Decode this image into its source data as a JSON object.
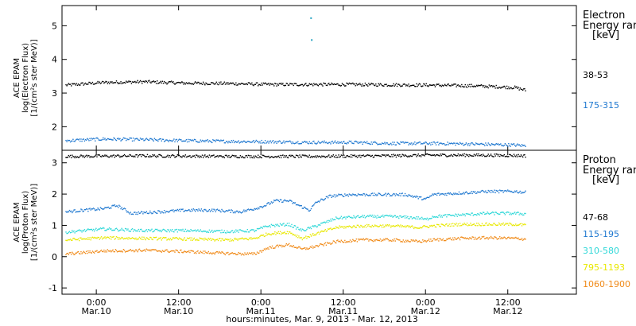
{
  "x_axis_title": "hours:minutes, Mar. 9, 2013 - Mar. 12, 2013",
  "x_ticks": [
    {
      "time": "0:00",
      "date": "Mar.10",
      "hours": 19
    },
    {
      "time": "12:00",
      "date": "Mar.10",
      "hours": 31
    },
    {
      "time": "0:00",
      "date": "Mar.11",
      "hours": 43
    },
    {
      "time": "12:00",
      "date": "Mar.11",
      "hours": 55
    },
    {
      "time": "0:00",
      "date": "Mar.12",
      "hours": 67
    },
    {
      "time": "12:00",
      "date": "Mar.12",
      "hours": 79
    }
  ],
  "chart_data": [
    {
      "type": "scatter",
      "panel": "electron",
      "ylabel_lines": [
        "ACE EPAM",
        "log(Electron Flux)",
        "[1/(cm²s ster MeV)]"
      ],
      "legend_title_lines": [
        "Electron",
        "Energy ran",
        "[keV]"
      ],
      "xlim": [
        14,
        89
      ],
      "ylim": [
        1.3,
        5.6
      ],
      "yticks": [
        2,
        3,
        4,
        5
      ],
      "series": [
        {
          "name": "38-53",
          "color": "#000000",
          "points": [
            [
              14.5,
              3.25
            ],
            [
              20,
              3.33
            ],
            [
              26,
              3.35
            ],
            [
              32,
              3.31
            ],
            [
              38,
              3.3
            ],
            [
              44,
              3.27
            ],
            [
              50,
              3.27
            ],
            [
              56,
              3.27
            ],
            [
              62,
              3.26
            ],
            [
              68,
              3.25
            ],
            [
              74,
              3.23
            ],
            [
              80,
              3.18
            ],
            [
              81.5,
              3.1
            ]
          ]
        },
        {
          "name": "175-315",
          "color": "#1f78d0",
          "points": [
            [
              14.5,
              1.6
            ],
            [
              20,
              1.65
            ],
            [
              26,
              1.63
            ],
            [
              32,
              1.6
            ],
            [
              38,
              1.58
            ],
            [
              44,
              1.57
            ],
            [
              50,
              1.55
            ],
            [
              56,
              1.55
            ],
            [
              62,
              1.52
            ],
            [
              68,
              1.52
            ],
            [
              74,
              1.5
            ],
            [
              80,
              1.47
            ],
            [
              81.5,
              1.45
            ]
          ]
        }
      ],
      "spikes": [
        {
          "x": 50.2,
          "y": 5.25,
          "color": "#1fa0c0"
        },
        {
          "x": 50.3,
          "y": 4.6,
          "color": "#1fa0c0"
        }
      ]
    },
    {
      "type": "scatter",
      "panel": "proton",
      "ylabel_lines": [
        "ACE EPAM",
        "log(Proton Flux)",
        "[1/(cm²s ster MeV)]"
      ],
      "legend_title_lines": [
        "Proton",
        "Energy ran",
        "[keV]"
      ],
      "xlim": [
        14,
        89
      ],
      "ylim": [
        -1.2,
        3.4
      ],
      "yticks": [
        -1,
        0,
        1,
        2,
        3
      ],
      "series": [
        {
          "name": "47-68",
          "color": "#000000",
          "points": [
            [
              14.5,
              3.22
            ],
            [
              26,
              3.24
            ],
            [
              38,
              3.22
            ],
            [
              44,
              3.22
            ],
            [
              50,
              3.22
            ],
            [
              56,
              3.23
            ],
            [
              62,
              3.24
            ],
            [
              68,
              3.26
            ],
            [
              74,
              3.26
            ],
            [
              80,
              3.25
            ],
            [
              81.5,
              3.24
            ]
          ]
        },
        {
          "name": "115-195",
          "color": "#1f78d0",
          "points": [
            [
              14.5,
              1.45
            ],
            [
              17,
              1.5
            ],
            [
              20,
              1.55
            ],
            [
              22,
              1.65
            ],
            [
              24,
              1.4
            ],
            [
              28,
              1.45
            ],
            [
              32,
              1.5
            ],
            [
              36,
              1.5
            ],
            [
              40,
              1.45
            ],
            [
              42,
              1.55
            ],
            [
              43.5,
              1.65
            ],
            [
              45,
              1.8
            ],
            [
              47,
              1.8
            ],
            [
              49,
              1.6
            ],
            [
              50,
              1.5
            ],
            [
              51,
              1.75
            ],
            [
              53,
              1.95
            ],
            [
              56,
              2.0
            ],
            [
              60,
              2.0
            ],
            [
              64,
              2.0
            ],
            [
              66,
              1.9
            ],
            [
              67,
              1.85
            ],
            [
              68,
              2.0
            ],
            [
              72,
              2.05
            ],
            [
              76,
              2.1
            ],
            [
              80,
              2.1
            ],
            [
              81.5,
              2.07
            ]
          ]
        },
        {
          "name": "310-580",
          "color": "#30d8d8",
          "points": [
            [
              14.5,
              0.8
            ],
            [
              20,
              0.9
            ],
            [
              26,
              0.85
            ],
            [
              32,
              0.85
            ],
            [
              38,
              0.82
            ],
            [
              42,
              0.85
            ],
            [
              44,
              1.0
            ],
            [
              47,
              1.05
            ],
            [
              49,
              0.85
            ],
            [
              51,
              1.0
            ],
            [
              54,
              1.25
            ],
            [
              58,
              1.3
            ],
            [
              62,
              1.3
            ],
            [
              66,
              1.25
            ],
            [
              67,
              1.2
            ],
            [
              68,
              1.3
            ],
            [
              72,
              1.35
            ],
            [
              76,
              1.4
            ],
            [
              80,
              1.4
            ],
            [
              81.5,
              1.38
            ]
          ]
        },
        {
          "name": "795-1193",
          "color": "#e8e800",
          "points": [
            [
              14.5,
              0.55
            ],
            [
              20,
              0.62
            ],
            [
              26,
              0.6
            ],
            [
              32,
              0.58
            ],
            [
              38,
              0.55
            ],
            [
              42,
              0.6
            ],
            [
              44,
              0.75
            ],
            [
              47,
              0.8
            ],
            [
              49,
              0.6
            ],
            [
              51,
              0.75
            ],
            [
              54,
              0.95
            ],
            [
              58,
              1.0
            ],
            [
              62,
              1.0
            ],
            [
              66,
              0.95
            ],
            [
              68,
              1.0
            ],
            [
              72,
              1.05
            ],
            [
              76,
              1.05
            ],
            [
              80,
              1.05
            ],
            [
              81.5,
              1.02
            ]
          ]
        },
        {
          "name": "1060-1900",
          "color": "#f08a18",
          "points": [
            [
              14.5,
              0.1
            ],
            [
              20,
              0.2
            ],
            [
              26,
              0.22
            ],
            [
              32,
              0.18
            ],
            [
              38,
              0.12
            ],
            [
              42,
              0.1
            ],
            [
              44,
              0.3
            ],
            [
              47,
              0.4
            ],
            [
              49,
              0.25
            ],
            [
              51,
              0.35
            ],
            [
              54,
              0.5
            ],
            [
              58,
              0.55
            ],
            [
              62,
              0.55
            ],
            [
              66,
              0.5
            ],
            [
              68,
              0.55
            ],
            [
              72,
              0.6
            ],
            [
              76,
              0.62
            ],
            [
              80,
              0.6
            ],
            [
              81.5,
              0.58
            ]
          ]
        }
      ],
      "spikes": []
    }
  ]
}
